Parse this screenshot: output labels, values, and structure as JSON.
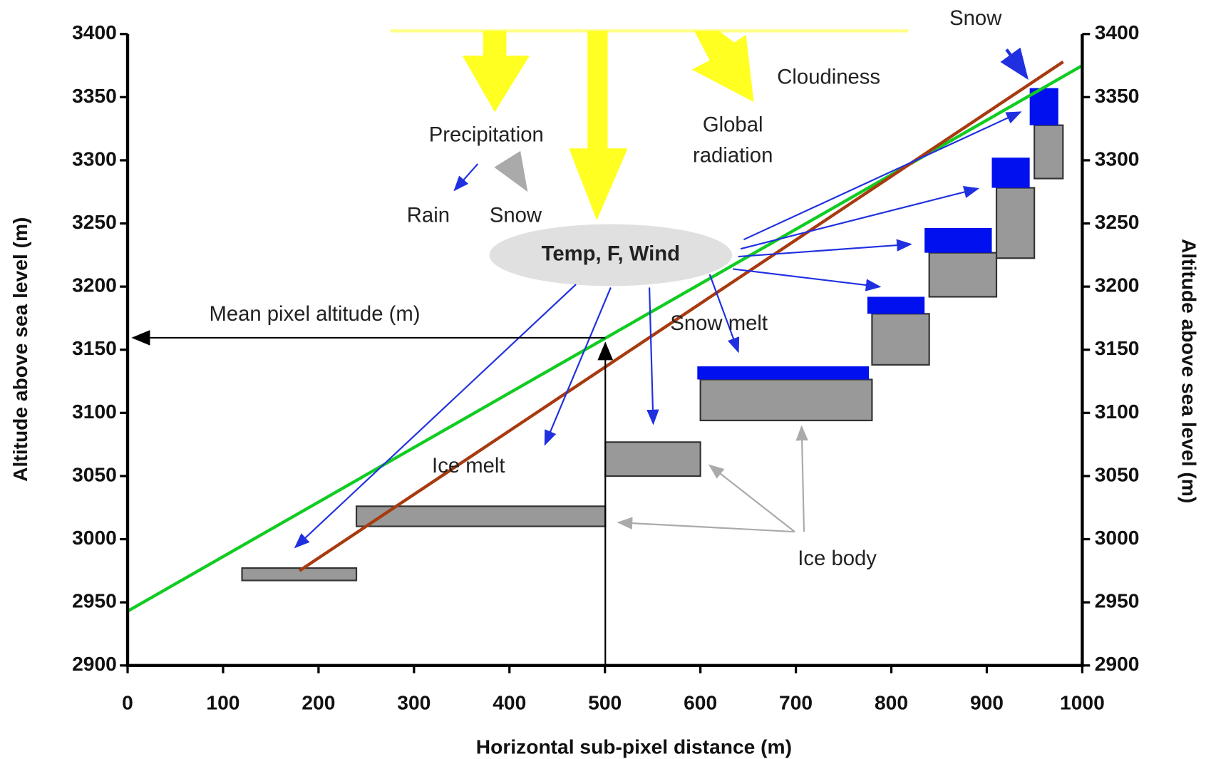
{
  "chart_data": {
    "type": "line",
    "xlabel": "Horizontal sub-pixel distance (m)",
    "ylabel": "Altitude above sea level (m)",
    "y2label": "Altitude above sea level (m)",
    "xlim": [
      0,
      1000
    ],
    "xticks": [
      0,
      100,
      200,
      300,
      400,
      500,
      600,
      700,
      800,
      900,
      1000
    ],
    "ylim": [
      2900,
      3400
    ],
    "yticks": [
      2900,
      2950,
      3000,
      3050,
      3100,
      3150,
      3200,
      3250,
      3300,
      3350,
      3400
    ],
    "y2lim": [
      2900,
      3400
    ],
    "y2ticks": [
      2900,
      2950,
      3000,
      3050,
      3100,
      3150,
      3200,
      3250,
      3300,
      3350,
      3400
    ],
    "series": [
      {
        "color": "#11cc22",
        "x": [
          0,
          1000
        ],
        "values": [
          2943,
          3375
        ]
      },
      {
        "color": "#a83a10",
        "x": [
          180,
          980
        ],
        "values": [
          2975,
          3378
        ]
      }
    ],
    "annotations": [
      "Snow",
      "Cloudiness",
      "Precipitation",
      "Global radiation",
      "Rain",
      "Snow",
      "Temp, F, Wind",
      "Mean pixel altitude (m)",
      "Snow melt",
      "Ice melt",
      "Ice body"
    ]
  }
}
